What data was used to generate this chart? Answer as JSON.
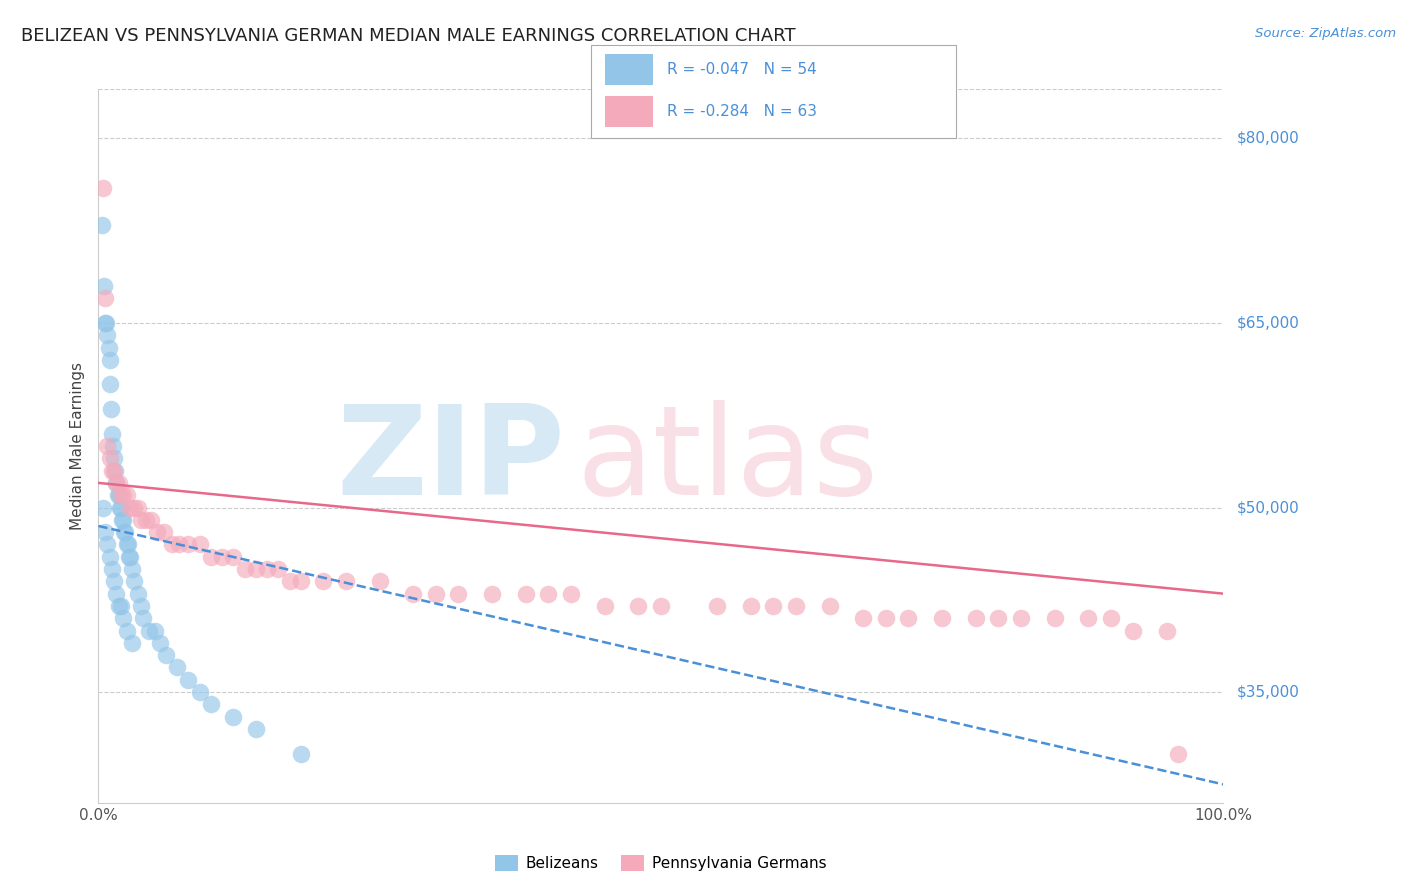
{
  "title": "BELIZEAN VS PENNSYLVANIA GERMAN MEDIAN MALE EARNINGS CORRELATION CHART",
  "source": "Source: ZipAtlas.com",
  "ylabel": "Median Male Earnings",
  "xlim": [
    0.0,
    100.0
  ],
  "ylim": [
    26000,
    84000
  ],
  "yticks": [
    35000,
    50000,
    65000,
    80000
  ],
  "ytick_labels": [
    "$35,000",
    "$50,000",
    "$65,000",
    "$80,000"
  ],
  "xtick_labels": [
    "0.0%",
    "100.0%"
  ],
  "legend_labels": [
    "Belizeans",
    "Pennsylvania Germans"
  ],
  "blue_color": "#92C5E8",
  "pink_color": "#F4AABB",
  "blue_line_color": "#4A90D9",
  "pink_line_color": "#E8688A",
  "R_blue": -0.047,
  "N_blue": 54,
  "R_pink": -0.284,
  "N_pink": 63,
  "blue_scatter_x": [
    0.3,
    0.5,
    0.6,
    0.7,
    0.8,
    0.9,
    1.0,
    1.0,
    1.1,
    1.2,
    1.3,
    1.4,
    1.5,
    1.6,
    1.7,
    1.8,
    1.9,
    2.0,
    2.1,
    2.2,
    2.3,
    2.4,
    2.5,
    2.6,
    2.7,
    2.8,
    3.0,
    3.2,
    3.5,
    3.8,
    4.0,
    4.5,
    5.0,
    5.5,
    6.0,
    7.0,
    8.0,
    9.0,
    10.0,
    12.0,
    14.0,
    0.4,
    0.6,
    0.8,
    1.0,
    1.2,
    1.4,
    1.6,
    1.8,
    2.0,
    2.2,
    2.5,
    3.0,
    18.0
  ],
  "blue_scatter_y": [
    73000,
    68000,
    65000,
    65000,
    64000,
    63000,
    62000,
    60000,
    58000,
    56000,
    55000,
    54000,
    53000,
    52000,
    51000,
    51000,
    50000,
    50000,
    49000,
    49000,
    48000,
    48000,
    47000,
    47000,
    46000,
    46000,
    45000,
    44000,
    43000,
    42000,
    41000,
    40000,
    40000,
    39000,
    38000,
    37000,
    36000,
    35000,
    34000,
    33000,
    32000,
    50000,
    48000,
    47000,
    46000,
    45000,
    44000,
    43000,
    42000,
    42000,
    41000,
    40000,
    39000,
    30000
  ],
  "pink_scatter_x": [
    0.4,
    0.6,
    0.8,
    1.0,
    1.2,
    1.4,
    1.6,
    1.8,
    2.0,
    2.2,
    2.5,
    2.8,
    3.2,
    3.5,
    3.8,
    4.2,
    4.7,
    5.2,
    5.8,
    6.5,
    7.2,
    8.0,
    9.0,
    10.0,
    11.0,
    12.0,
    13.0,
    14.0,
    15.0,
    16.0,
    17.0,
    18.0,
    20.0,
    22.0,
    25.0,
    28.0,
    30.0,
    32.0,
    35.0,
    38.0,
    40.0,
    42.0,
    45.0,
    48.0,
    50.0,
    55.0,
    58.0,
    60.0,
    62.0,
    65.0,
    68.0,
    70.0,
    72.0,
    75.0,
    78.0,
    80.0,
    82.0,
    85.0,
    88.0,
    90.0,
    92.0,
    95.0,
    96.0
  ],
  "pink_scatter_y": [
    76000,
    67000,
    55000,
    54000,
    53000,
    53000,
    52000,
    52000,
    51000,
    51000,
    51000,
    50000,
    50000,
    50000,
    49000,
    49000,
    49000,
    48000,
    48000,
    47000,
    47000,
    47000,
    47000,
    46000,
    46000,
    46000,
    45000,
    45000,
    45000,
    45000,
    44000,
    44000,
    44000,
    44000,
    44000,
    43000,
    43000,
    43000,
    43000,
    43000,
    43000,
    43000,
    42000,
    42000,
    42000,
    42000,
    42000,
    42000,
    42000,
    42000,
    41000,
    41000,
    41000,
    41000,
    41000,
    41000,
    41000,
    41000,
    41000,
    41000,
    40000,
    40000,
    30000
  ],
  "blue_reg_x0": 0.0,
  "blue_reg_y0": 48500,
  "blue_reg_x1": 100.0,
  "blue_reg_y1": 27500,
  "pink_reg_x0": 0.0,
  "pink_reg_y0": 52000,
  "pink_reg_x1": 100.0,
  "pink_reg_y1": 43000
}
